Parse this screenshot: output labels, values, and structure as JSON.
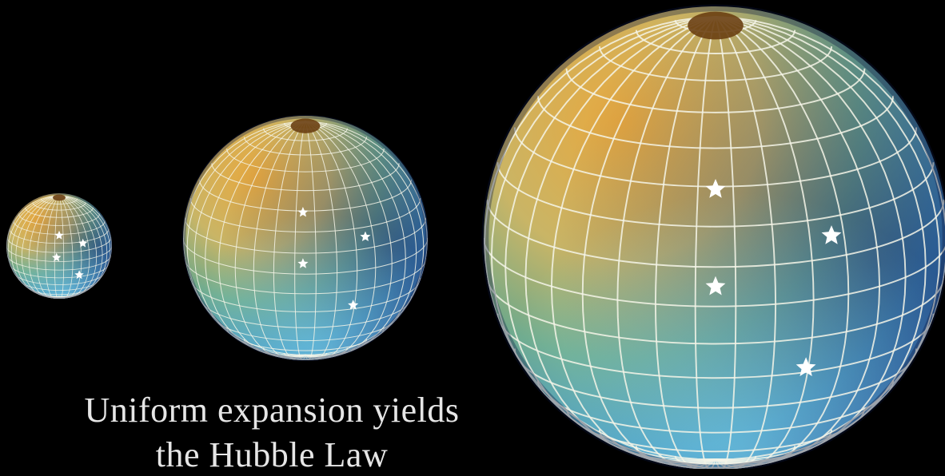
{
  "caption": {
    "line1": "Uniform expansion yields",
    "line2": "the Hubble Law"
  },
  "colors": {
    "background": "#000000",
    "warm": "#e3a13c",
    "mid": "#9fc07a",
    "cool": "#3c8fc8",
    "grid": "#f4f4e8",
    "star": "#ffffff"
  },
  "spheres": [
    {
      "name": "small",
      "stars": 4
    },
    {
      "name": "medium",
      "stars": 4
    },
    {
      "name": "large",
      "stars": 4
    }
  ]
}
